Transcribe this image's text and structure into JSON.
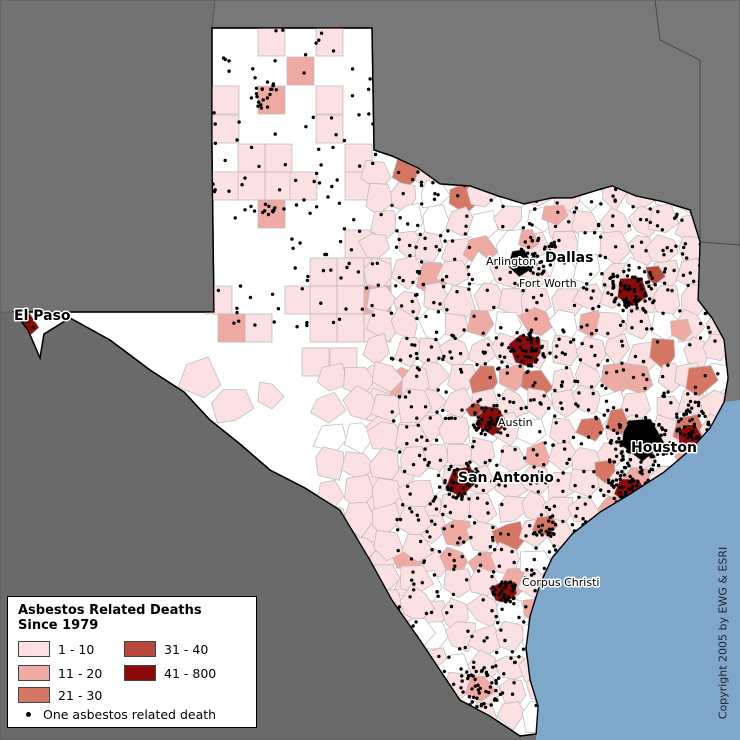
{
  "colors": {
    "background": "#6e6e6e",
    "neighbor_states": "#7d7d7d",
    "ocean": "#7fa7c9",
    "no_data": "#ffffff",
    "county_border": "#b8b8b8",
    "class_1_10": "#fbe1e1",
    "class_11_20": "#f0aaa4",
    "class_21_30": "#d67766",
    "class_31_40": "#b8473c",
    "class_41_800": "#8b0a0a",
    "dot": "#000000"
  },
  "legend": {
    "title_line1": "Asbestos Related Deaths",
    "title_line2": "Since 1979",
    "items": [
      {
        "label": "1 - 10",
        "color": "#fbe1e1"
      },
      {
        "label": "11 - 20",
        "color": "#f0aaa4"
      },
      {
        "label": "21 - 30",
        "color": "#d67766"
      },
      {
        "label": "31 - 40",
        "color": "#b8473c"
      },
      {
        "label": "41 - 800",
        "color": "#8b0a0a"
      }
    ],
    "dot_label": "One asbestos related death"
  },
  "cities": {
    "dallas": "Dallas",
    "arlington": "Arlington",
    "fort_worth": "Fort Worth",
    "el_paso": "El Paso",
    "austin": "Austin",
    "san_antonio": "San Antonio",
    "houston": "Houston",
    "corpus_christi": "Corpus Christi"
  },
  "copyright": "Copyright 2005 by EWG & ESRI"
}
